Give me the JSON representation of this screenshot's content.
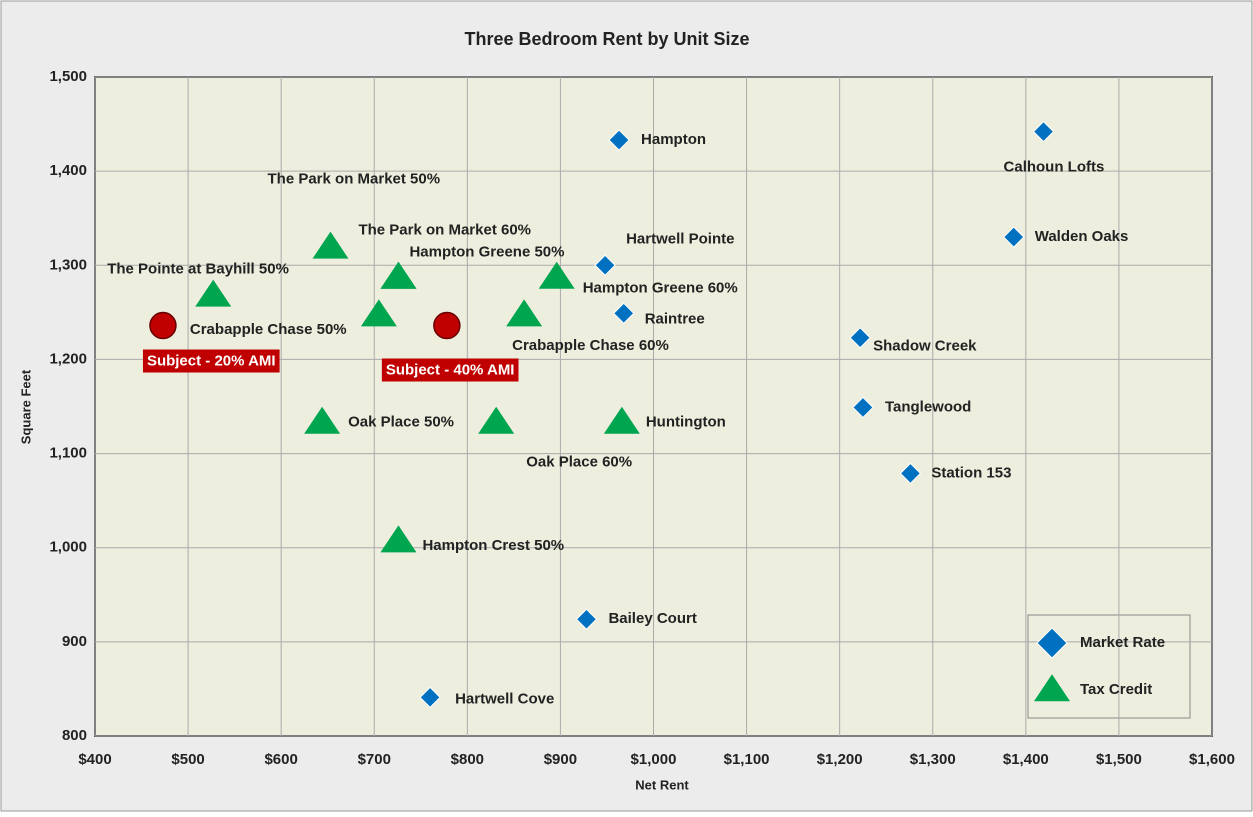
{
  "chart_data": {
    "type": "scatter",
    "title": "Three Bedroom Rent by Unit Size",
    "xlabel": "Net Rent",
    "ylabel": "Square Feet",
    "xlim": [
      400,
      1600
    ],
    "xticks": [
      {
        "value": 400,
        "label": "$400"
      },
      {
        "value": 500,
        "label": "$500"
      },
      {
        "value": 600,
        "label": "$600"
      },
      {
        "value": 700,
        "label": "$700"
      },
      {
        "value": 800,
        "label": "$800"
      },
      {
        "value": 900,
        "label": "$900"
      },
      {
        "value": 1000,
        "label": "$1,000"
      },
      {
        "value": 1100,
        "label": "$1,100"
      },
      {
        "value": 1200,
        "label": "$1,200"
      },
      {
        "value": 1300,
        "label": "$1,300"
      },
      {
        "value": 1400,
        "label": "$1,400"
      },
      {
        "value": 1500,
        "label": "$1,500"
      },
      {
        "value": 1600,
        "label": "$1,600"
      }
    ],
    "ylim": [
      800,
      1500
    ],
    "yticks": [
      800,
      900,
      {
        "value": 1000,
        "label": "1,000"
      },
      {
        "value": 1100,
        "label": "1,100"
      },
      {
        "value": 1200,
        "label": "1,200"
      },
      {
        "value": 1300,
        "label": "1,300"
      },
      {
        "value": 1400,
        "label": "1,400"
      },
      {
        "value": 1500,
        "label": "1,500"
      }
    ],
    "grid": true,
    "legend": "lower right",
    "series": [
      {
        "name": "Market Rate",
        "color": "#0070c0",
        "marker": "diamond",
        "labels": [
          "Hampton",
          "Calhoun Lofts",
          "Walden Oaks",
          "Hartwell Pointe",
          "Raintree",
          "Shadow Creek",
          "Tanglewood",
          "Station 153",
          "Bailey Court",
          "Hartwell Cove"
        ],
        "x": [
          963,
          1419,
          1387,
          948,
          968,
          1222,
          1225,
          1276,
          928,
          760
        ],
        "y": [
          1433,
          1442,
          1330,
          1300,
          1249,
          1223,
          1149,
          1079,
          924,
          841
        ]
      },
      {
        "name": "Tax Credit",
        "color": "#00a550",
        "marker": "triangle",
        "labels": [
          "The Park on Market 50%",
          "The Park on Market 60%",
          "Hampton Greene 50%",
          "Hampton Greene 60%",
          "The Pointe at Bayhill 50%",
          "Crabapple Chase 50%",
          "Crabapple Chase 60%",
          "Oak Place 50%",
          "Oak Place 60%",
          "Huntington",
          "Hampton Crest 50%"
        ],
        "x": [
          653,
          726,
          726,
          896,
          527,
          705,
          861,
          644,
          831,
          966,
          726
        ],
        "y": [
          1319,
          1287,
          1287,
          1287,
          1268,
          1247,
          1247,
          1133,
          1133,
          1133,
          1007
        ]
      },
      {
        "color": "#c00000",
        "marker": "circle",
        "labels": [
          "Subject  - 20% AMI",
          "Subject  - 40% AMI"
        ],
        "x": [
          473,
          778
        ],
        "y": [
          1236,
          1236
        ]
      }
    ]
  }
}
